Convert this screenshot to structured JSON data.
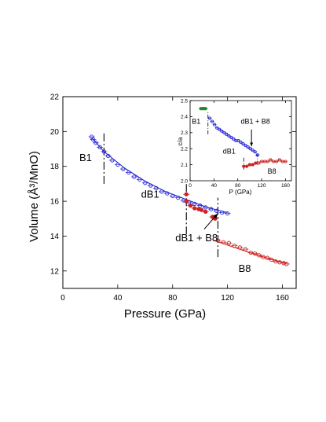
{
  "colors": {
    "blue": "#2a2ad6",
    "red": "#cc2222",
    "green": "#1f8a2a",
    "axis": "#000000",
    "dash": "#000000"
  },
  "chart_data": [
    {
      "type": "scatter",
      "title": "",
      "xlabel": "Pressure (GPa)",
      "ylabel": "Volume (Å³/MnO)",
      "xlim": [
        0,
        170
      ],
      "ylim": [
        11,
        22
      ],
      "xticks": [
        "0",
        "40",
        "80",
        "120",
        "160"
      ],
      "yticks": [
        "12",
        "14",
        "16",
        "18",
        "20",
        "22"
      ],
      "annotations": [
        {
          "text": "B1",
          "x": 12,
          "y": 18.3
        },
        {
          "text": "dB1",
          "x": 57,
          "y": 16.2
        },
        {
          "text": "dB1 + B8",
          "x": 82,
          "y": 13.7
        },
        {
          "text": "B8",
          "x": 128,
          "y": 11.95
        }
      ],
      "arrow": {
        "from": [
          103,
          14.4
        ],
        "to": [
          113,
          15.3
        ]
      },
      "dashed_lines": [
        {
          "x": 30,
          "y": [
            17.0,
            20.0
          ]
        },
        {
          "x": 90,
          "y": [
            14.1,
            17.0
          ]
        },
        {
          "x": 113,
          "y": [
            12.8,
            16.2
          ]
        }
      ],
      "fit_curves": [
        {
          "color": "blue",
          "x": [
            21,
            30,
            45,
            60,
            75,
            90,
            105,
            120
          ],
          "y": [
            19.65,
            18.85,
            17.9,
            17.15,
            16.55,
            16.1,
            15.65,
            15.35
          ]
        },
        {
          "color": "red",
          "x": [
            110,
            125,
            140,
            155,
            163
          ],
          "y": [
            13.75,
            13.35,
            12.95,
            12.6,
            12.45
          ]
        }
      ],
      "series": [
        {
          "color": "blue",
          "marker": "open-circle",
          "x": [
            21,
            22,
            24,
            27,
            30,
            33,
            36,
            40,
            44,
            48,
            52,
            56,
            60,
            64,
            68,
            72,
            76,
            80,
            84,
            88,
            92,
            96,
            100,
            104,
            108,
            112,
            116,
            120
          ],
          "y": [
            19.7,
            19.55,
            19.35,
            19.1,
            18.85,
            18.6,
            18.35,
            18.1,
            17.85,
            17.65,
            17.4,
            17.25,
            17.05,
            16.9,
            16.75,
            16.55,
            16.45,
            16.3,
            16.2,
            16.05,
            15.95,
            15.85,
            15.75,
            15.65,
            15.55,
            15.45,
            15.35,
            15.3
          ]
        },
        {
          "color": "red",
          "marker": "filled-circle",
          "x": [
            90,
            90,
            93,
            96,
            99,
            101,
            104,
            109,
            111
          ],
          "y": [
            16.4,
            16.0,
            15.75,
            15.6,
            15.55,
            15.5,
            15.4,
            15.1,
            15.0
          ]
        },
        {
          "color": "red",
          "marker": "open-circle",
          "x": [
            113,
            117,
            121,
            125,
            129,
            133,
            137,
            140,
            143,
            146,
            149,
            152,
            155,
            158,
            161,
            163
          ],
          "y": [
            13.75,
            13.65,
            13.6,
            13.45,
            13.35,
            13.25,
            13.05,
            13.0,
            12.9,
            12.8,
            12.75,
            12.65,
            12.55,
            12.5,
            12.45,
            12.4
          ]
        }
      ]
    },
    {
      "type": "scatter",
      "title": "",
      "xlabel": "P (GPa)",
      "ylabel": "c/a",
      "xlim": [
        0,
        170
      ],
      "ylim": [
        2.0,
        2.5
      ],
      "xticks": [
        "0",
        "40",
        "80",
        "120",
        "160"
      ],
      "yticks": [
        "2.0",
        "2.1",
        "2.2",
        "2.3",
        "2.4",
        "2.5"
      ],
      "annotations": [
        {
          "text": "B1",
          "x": 3,
          "y": 2.355
        },
        {
          "text": "dB1 + B8",
          "x": 85,
          "y": 2.355
        },
        {
          "text": "dB1",
          "x": 55,
          "y": 2.17
        },
        {
          "text": "B8",
          "x": 130,
          "y": 2.045
        }
      ],
      "arrow": {
        "from": [
          103,
          2.32
        ],
        "to": [
          103,
          2.215
        ]
      },
      "dashed_lines": [
        {
          "x": 30,
          "y": [
            2.29,
            2.43
          ]
        },
        {
          "x": 90,
          "y": [
            2.07,
            2.15
          ]
        },
        {
          "x": 113,
          "y": [
            2.1,
            2.17
          ]
        }
      ],
      "series": [
        {
          "color": "green",
          "marker": "filled-circle",
          "x": [
            18,
            20,
            22,
            24,
            26
          ],
          "y": [
            2.45,
            2.45,
            2.45,
            2.45,
            2.45
          ]
        },
        {
          "color": "blue",
          "marker": "open-circle",
          "x": [
            33,
            37,
            41,
            45,
            49,
            53,
            57,
            61,
            65,
            69,
            73,
            77,
            81,
            85,
            89,
            93,
            97,
            101,
            105,
            109,
            113
          ],
          "y": [
            2.39,
            2.37,
            2.35,
            2.33,
            2.32,
            2.31,
            2.3,
            2.29,
            2.28,
            2.27,
            2.26,
            2.25,
            2.25,
            2.24,
            2.23,
            2.22,
            2.21,
            2.2,
            2.19,
            2.18,
            2.16
          ]
        },
        {
          "color": "red",
          "marker": "filled-circle",
          "x": [
            90,
            95,
            100,
            105,
            110
          ],
          "y": [
            2.09,
            2.09,
            2.1,
            2.1,
            2.11
          ]
        },
        {
          "color": "red",
          "marker": "open-circle",
          "x": [
            115,
            120,
            125,
            130,
            135,
            140,
            145,
            150,
            155,
            160
          ],
          "y": [
            2.11,
            2.12,
            2.12,
            2.12,
            2.13,
            2.12,
            2.12,
            2.13,
            2.12,
            2.12
          ]
        }
      ]
    }
  ]
}
